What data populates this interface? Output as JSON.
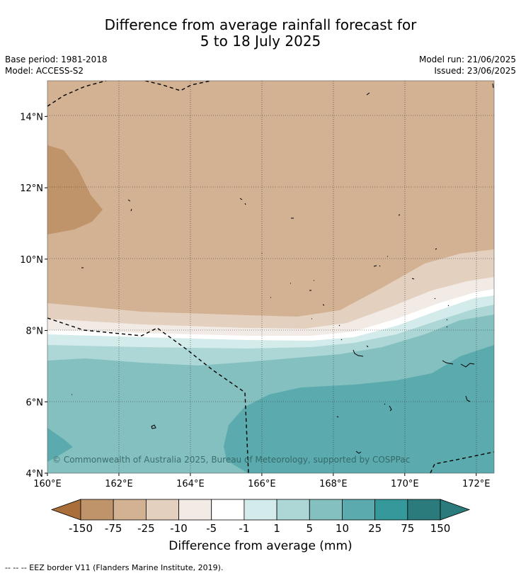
{
  "title_line1": "Difference from average rainfall forecast for",
  "title_line2": "5 to 18 July 2025",
  "base_period": "Base period: 1981-2018",
  "model": "Model: ACCESS-S2",
  "model_run": "Model run: 21/06/2025",
  "issued": "Issued: 23/06/2025",
  "copyright": "© Commonwealth of Australia 2025, Bureau of Meteorology, supported by COSPPac",
  "footer_note": "--  --  -- EEZ border V11 (Flanders Marine Institute, 2019).",
  "chart_data": {
    "type": "heatmap",
    "xlim": [
      160,
      172.5
    ],
    "ylim": [
      4,
      15
    ],
    "x_ticks": [
      160,
      162,
      164,
      166,
      168,
      170,
      172
    ],
    "x_tick_labels": [
      "160°E",
      "162°E",
      "164°E",
      "166°E",
      "168°E",
      "170°E",
      "172°E"
    ],
    "y_ticks": [
      4,
      6,
      8,
      10,
      12,
      14
    ],
    "y_tick_labels": [
      "4°N",
      "6°N",
      "8°N",
      "10°N",
      "12°N",
      "14°N"
    ],
    "grid": true,
    "colorbar": {
      "label": "Difference from average (mm)",
      "boundary_labels": [
        "-150",
        "-75",
        "-25",
        "-10",
        "-5",
        "-1",
        "1",
        "5",
        "10",
        "25",
        "75",
        "150"
      ],
      "colors": [
        "#a96e3a",
        "#c0946a",
        "#d3b193",
        "#e4d0bf",
        "#f2ebe5",
        "#ffffff",
        "#d3ebea",
        "#acd7d6",
        "#85c0c0",
        "#5baaad",
        "#35999b",
        "#2b7a7c"
      ]
    },
    "contour_bands": [
      {
        "range": "-75 to -25",
        "color": "#c0946a",
        "area": "west, about 10.7°N to 13.2°N near 160–161.5°E"
      },
      {
        "range": "-25 to -10",
        "color": "#d3b193",
        "area": "north of about 8.8°N in the west, about 10.3°N in the east"
      },
      {
        "range": "-10 to -5",
        "color": "#e4d0bf",
        "area": "band near 8.5°N (west) rising to about 9.5°N (east)"
      },
      {
        "range": "-5 to -1",
        "color": "#f2ebe5",
        "area": "narrow band near 8.1–8.5°N"
      },
      {
        "range": "-1 to 1",
        "color": "#ffffff",
        "area": "narrow band near 7.8–8.0°N"
      },
      {
        "range": "1 to 5",
        "color": "#d3ebea",
        "area": "narrow band near 7.5–7.8°N"
      },
      {
        "range": "5 to 10",
        "color": "#acd7d6",
        "area": "band near 7.1–7.5°N"
      },
      {
        "range": "10 to 25",
        "color": "#85c0c0",
        "area": "south of about 7.1°N"
      },
      {
        "range": "25 to 75",
        "color": "#5baaad",
        "area": "south-east of about 165.3°E, 6.3°N; and south-west corner"
      }
    ]
  }
}
